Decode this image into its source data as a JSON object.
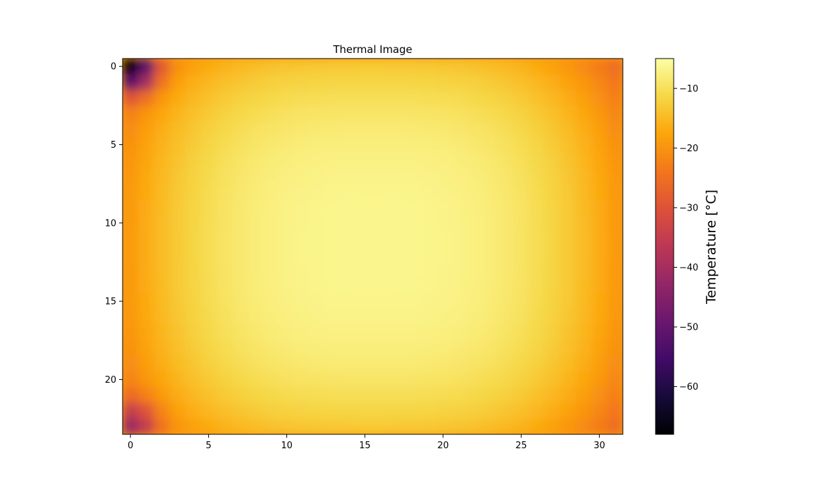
{
  "chart_data": {
    "type": "heatmap",
    "title": "Thermal Image",
    "xlabel": "",
    "ylabel": "",
    "grid": false,
    "colormap": "inferno",
    "x_ticks": [
      0,
      5,
      10,
      15,
      20,
      25,
      30
    ],
    "y_ticks": [
      0,
      5,
      10,
      15,
      20
    ],
    "xlim": [
      -0.5,
      31.5
    ],
    "ylim": [
      23.5,
      -0.5
    ],
    "grid_shape": [
      24,
      32
    ],
    "colorbar": {
      "label": "Temperature [°C]",
      "range": [
        -68,
        -5
      ],
      "ticks": [
        -10,
        -20,
        -30,
        -40,
        -50,
        -60
      ]
    },
    "value_model": {
      "description": "approximate temperatures read from the colour map",
      "center_temp": -6.5,
      "left_edge_temp": -19,
      "right_edge_temp": -19,
      "top_edge_temp": -13,
      "bottom_edge_temp": -13,
      "cold_spots": [
        {
          "x": 0,
          "y": 0,
          "temp": -68
        },
        {
          "x": 0,
          "y": 23,
          "temp": -42
        }
      ]
    }
  }
}
